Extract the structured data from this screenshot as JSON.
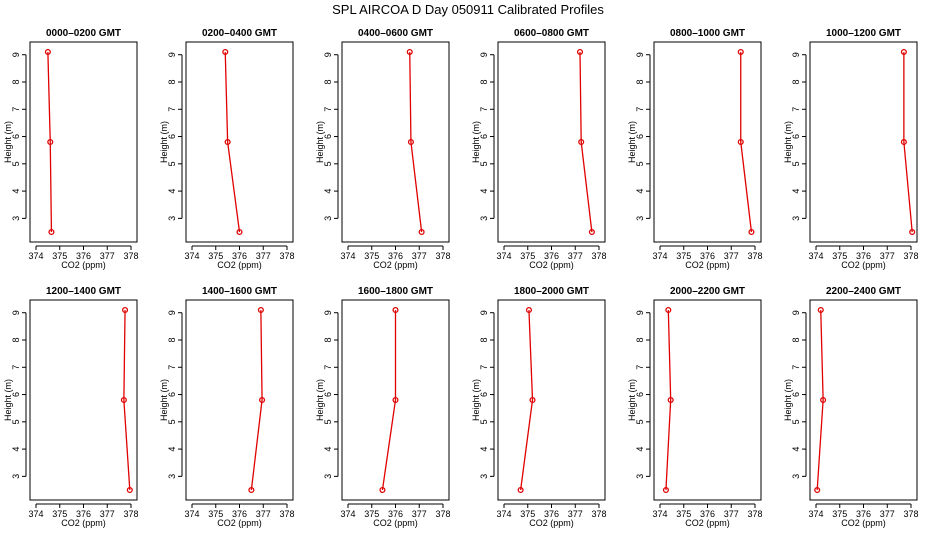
{
  "figure": {
    "title": "SPL AIRCOA D  Day 050911  Calibrated Profiles"
  },
  "colors": {
    "series": "#e00000",
    "axis": "#000000"
  },
  "chart_data": [
    {
      "type": "line",
      "title": "0000–0200 GMT",
      "xlabel": "CO2 (ppm)",
      "ylabel": "Height (m)",
      "xlim": [
        374,
        378
      ],
      "ylim": [
        2.5,
        9.1
      ],
      "xticks": [
        374,
        375,
        376,
        377,
        378
      ],
      "yticks": [
        3,
        4,
        5,
        6,
        7,
        8,
        9
      ],
      "grid": false,
      "series": [
        {
          "x": [
            374.5,
            374.6,
            374.65
          ],
          "y": [
            9.1,
            5.8,
            2.5
          ]
        }
      ]
    },
    {
      "type": "line",
      "title": "0200–0400 GMT",
      "xlabel": "CO2 (ppm)",
      "ylabel": "Height (m)",
      "xlim": [
        374,
        378
      ],
      "ylim": [
        2.5,
        9.1
      ],
      "xticks": [
        374,
        375,
        376,
        377,
        378
      ],
      "yticks": [
        3,
        4,
        5,
        6,
        7,
        8,
        9
      ],
      "grid": false,
      "series": [
        {
          "x": [
            375.4,
            375.5,
            376.0
          ],
          "y": [
            9.1,
            5.8,
            2.5
          ]
        }
      ]
    },
    {
      "type": "line",
      "title": "0400–0600 GMT",
      "xlabel": "CO2 (ppm)",
      "ylabel": "Height (m)",
      "xlim": [
        374,
        378
      ],
      "ylim": [
        2.5,
        9.1
      ],
      "xticks": [
        374,
        375,
        376,
        377,
        378
      ],
      "yticks": [
        3,
        4,
        5,
        6,
        7,
        8,
        9
      ],
      "grid": false,
      "series": [
        {
          "x": [
            376.6,
            376.65,
            377.1
          ],
          "y": [
            9.1,
            5.8,
            2.5
          ]
        }
      ]
    },
    {
      "type": "line",
      "title": "0600–0800 GMT",
      "xlabel": "CO2 (ppm)",
      "ylabel": "Height (m)",
      "xlim": [
        374,
        378
      ],
      "ylim": [
        2.5,
        9.1
      ],
      "xticks": [
        374,
        375,
        376,
        377,
        378
      ],
      "yticks": [
        3,
        4,
        5,
        6,
        7,
        8,
        9
      ],
      "grid": false,
      "series": [
        {
          "x": [
            377.2,
            377.25,
            377.7
          ],
          "y": [
            9.1,
            5.8,
            2.5
          ]
        }
      ]
    },
    {
      "type": "line",
      "title": "0800–1000 GMT",
      "xlabel": "CO2 (ppm)",
      "ylabel": "Height (m)",
      "xlim": [
        374,
        378
      ],
      "ylim": [
        2.5,
        9.1
      ],
      "xticks": [
        374,
        375,
        376,
        377,
        378
      ],
      "yticks": [
        3,
        4,
        5,
        6,
        7,
        8,
        9
      ],
      "grid": false,
      "series": [
        {
          "x": [
            377.4,
            377.4,
            377.85
          ],
          "y": [
            9.1,
            5.8,
            2.5
          ]
        }
      ]
    },
    {
      "type": "line",
      "title": "1000–1200 GMT",
      "xlabel": "CO2 (ppm)",
      "ylabel": "Height (m)",
      "xlim": [
        374,
        378
      ],
      "ylim": [
        2.5,
        9.1
      ],
      "xticks": [
        374,
        375,
        376,
        377,
        378
      ],
      "yticks": [
        3,
        4,
        5,
        6,
        7,
        8,
        9
      ],
      "grid": false,
      "series": [
        {
          "x": [
            377.7,
            377.7,
            378.05
          ],
          "y": [
            9.1,
            5.8,
            2.5
          ]
        }
      ]
    },
    {
      "type": "line",
      "title": "1200–1400 GMT",
      "xlabel": "CO2 (ppm)",
      "ylabel": "Height (m)",
      "xlim": [
        374,
        378
      ],
      "ylim": [
        2.5,
        9.1
      ],
      "xticks": [
        374,
        375,
        376,
        377,
        378
      ],
      "yticks": [
        3,
        4,
        5,
        6,
        7,
        8,
        9
      ],
      "grid": false,
      "series": [
        {
          "x": [
            377.75,
            377.7,
            377.95
          ],
          "y": [
            9.1,
            5.8,
            2.5
          ]
        }
      ]
    },
    {
      "type": "line",
      "title": "1400–1600 GMT",
      "xlabel": "CO2 (ppm)",
      "ylabel": "Height (m)",
      "xlim": [
        374,
        378
      ],
      "ylim": [
        2.5,
        9.1
      ],
      "xticks": [
        374,
        375,
        376,
        377,
        378
      ],
      "yticks": [
        3,
        4,
        5,
        6,
        7,
        8,
        9
      ],
      "grid": false,
      "series": [
        {
          "x": [
            376.9,
            376.95,
            376.5
          ],
          "y": [
            9.1,
            5.8,
            2.5
          ]
        }
      ]
    },
    {
      "type": "line",
      "title": "1600–1800 GMT",
      "xlabel": "CO2 (ppm)",
      "ylabel": "Height (m)",
      "xlim": [
        374,
        378
      ],
      "ylim": [
        2.5,
        9.1
      ],
      "xticks": [
        374,
        375,
        376,
        377,
        378
      ],
      "yticks": [
        3,
        4,
        5,
        6,
        7,
        8,
        9
      ],
      "grid": false,
      "series": [
        {
          "x": [
            376.0,
            376.0,
            375.45
          ],
          "y": [
            9.1,
            5.8,
            2.5
          ]
        }
      ]
    },
    {
      "type": "line",
      "title": "1800–2000 GMT",
      "xlabel": "CO2 (ppm)",
      "ylabel": "Height (m)",
      "xlim": [
        374,
        378
      ],
      "ylim": [
        2.5,
        9.1
      ],
      "xticks": [
        374,
        375,
        376,
        377,
        378
      ],
      "yticks": [
        3,
        4,
        5,
        6,
        7,
        8,
        9
      ],
      "grid": false,
      "series": [
        {
          "x": [
            375.05,
            375.2,
            374.7
          ],
          "y": [
            9.1,
            5.8,
            2.5
          ]
        }
      ]
    },
    {
      "type": "line",
      "title": "2000–2200 GMT",
      "xlabel": "CO2 (ppm)",
      "ylabel": "Height (m)",
      "xlim": [
        374,
        378
      ],
      "ylim": [
        2.5,
        9.1
      ],
      "xticks": [
        374,
        375,
        376,
        377,
        378
      ],
      "yticks": [
        3,
        4,
        5,
        6,
        7,
        8,
        9
      ],
      "grid": false,
      "series": [
        {
          "x": [
            374.35,
            374.45,
            374.25
          ],
          "y": [
            9.1,
            5.8,
            2.5
          ]
        }
      ]
    },
    {
      "type": "line",
      "title": "2200–2400 GMT",
      "xlabel": "CO2 (ppm)",
      "ylabel": "Height (m)",
      "xlim": [
        374,
        378
      ],
      "ylim": [
        2.5,
        9.1
      ],
      "xticks": [
        374,
        375,
        376,
        377,
        378
      ],
      "yticks": [
        3,
        4,
        5,
        6,
        7,
        8,
        9
      ],
      "grid": false,
      "series": [
        {
          "x": [
            374.2,
            374.3,
            374.05
          ],
          "y": [
            9.1,
            5.8,
            2.5
          ]
        }
      ]
    }
  ]
}
